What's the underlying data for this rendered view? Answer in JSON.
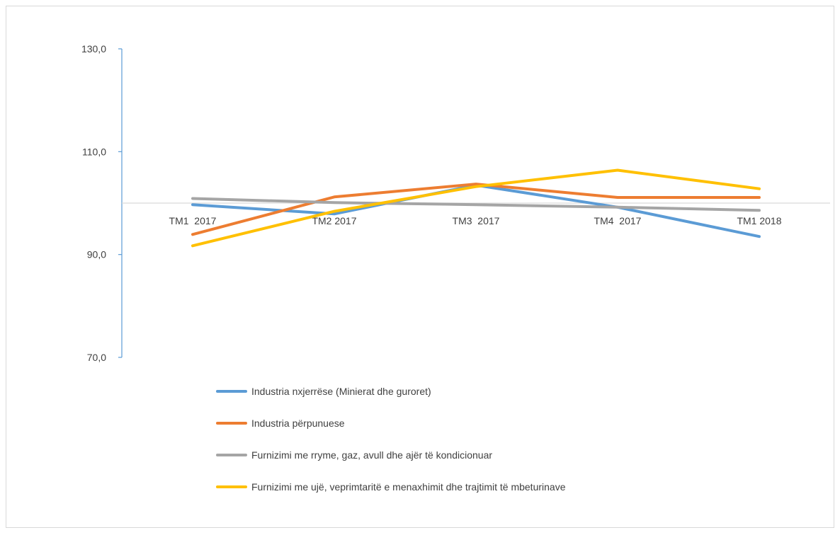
{
  "chart_data": {
    "type": "line",
    "categories": [
      "TM1  2017",
      "TM2 2017",
      "TM3  2017",
      "TM4  2017",
      "TM1 2018"
    ],
    "y_ticks": [
      "130,0",
      "110,0",
      "90,0",
      "70,0"
    ],
    "ylim": [
      70,
      130
    ],
    "baseline": 100,
    "grid": false,
    "legend_position": "bottom",
    "series": [
      {
        "name": "Industria nxjerrëse (Minierat dhe guroret)",
        "color": "#5b9bd5",
        "values": [
          99.7,
          97.9,
          103.5,
          99.2,
          93.5
        ]
      },
      {
        "name": "Industria përpunuese",
        "color": "#ed7d31",
        "values": [
          93.9,
          101.2,
          103.7,
          101.1,
          101.1
        ]
      },
      {
        "name": "Furnizimi me rryme, gaz, avull dhe ajër të kondicionuar",
        "color": "#a5a5a5",
        "values": [
          100.9,
          100.1,
          99.7,
          99.2,
          98.6
        ]
      },
      {
        "name": "Furnizimi me ujë, veprimtaritë e menaxhimit dhe trajtimit të mbeturinave",
        "color": "#ffc000",
        "values": [
          91.7,
          98.4,
          103.2,
          106.4,
          102.8
        ]
      }
    ]
  }
}
